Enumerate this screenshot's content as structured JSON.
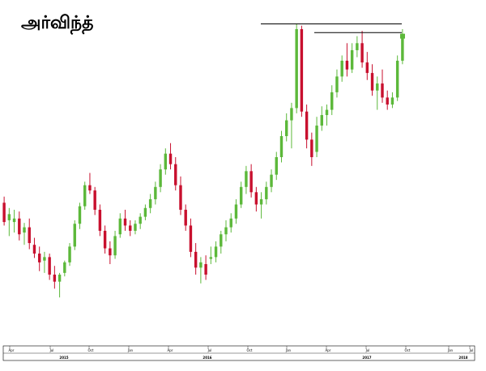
{
  "title": "அர்விந்த்",
  "colors": {
    "up": "#5cb83a",
    "down": "#c8102e",
    "axis": "#000000",
    "resistance_line": "#000000",
    "background": "#ffffff",
    "last_price_tag": "#5cb83a"
  },
  "chart_data": {
    "type": "candlestick",
    "title": "அர்விந்த்",
    "grid": false,
    "legend": "none",
    "x_month_labels": [
      "Apr",
      "Jul",
      "Oct",
      "Jan",
      "Apr",
      "Jul",
      "Oct",
      "Jan",
      "Apr",
      "Jul",
      "Oct",
      "Jan",
      "Jul"
    ],
    "x_year_labels": [
      "2015",
      "2016",
      "2017",
      "2018"
    ],
    "candles": [
      {
        "o": 258,
        "h": 265,
        "l": 232,
        "c": 236
      },
      {
        "o": 238,
        "h": 252,
        "l": 220,
        "c": 245
      },
      {
        "o": 236,
        "h": 250,
        "l": 224,
        "c": 240
      },
      {
        "o": 240,
        "h": 248,
        "l": 215,
        "c": 222
      },
      {
        "o": 224,
        "h": 235,
        "l": 210,
        "c": 230
      },
      {
        "o": 230,
        "h": 240,
        "l": 205,
        "c": 212
      },
      {
        "o": 210,
        "h": 218,
        "l": 195,
        "c": 200
      },
      {
        "o": 200,
        "h": 208,
        "l": 180,
        "c": 190
      },
      {
        "o": 192,
        "h": 202,
        "l": 178,
        "c": 196
      },
      {
        "o": 196,
        "h": 200,
        "l": 170,
        "c": 176
      },
      {
        "o": 176,
        "h": 186,
        "l": 160,
        "c": 168
      },
      {
        "o": 168,
        "h": 178,
        "l": 150,
        "c": 176
      },
      {
        "o": 178,
        "h": 192,
        "l": 174,
        "c": 190
      },
      {
        "o": 190,
        "h": 212,
        "l": 186,
        "c": 208
      },
      {
        "o": 208,
        "h": 238,
        "l": 204,
        "c": 234
      },
      {
        "o": 234,
        "h": 258,
        "l": 228,
        "c": 254
      },
      {
        "o": 254,
        "h": 282,
        "l": 250,
        "c": 278
      },
      {
        "o": 278,
        "h": 292,
        "l": 268,
        "c": 272
      },
      {
        "o": 272,
        "h": 276,
        "l": 244,
        "c": 250
      },
      {
        "o": 250,
        "h": 256,
        "l": 220,
        "c": 226
      },
      {
        "o": 226,
        "h": 232,
        "l": 200,
        "c": 206
      },
      {
        "o": 206,
        "h": 214,
        "l": 188,
        "c": 198
      },
      {
        "o": 198,
        "h": 226,
        "l": 194,
        "c": 220
      },
      {
        "o": 222,
        "h": 246,
        "l": 218,
        "c": 240
      },
      {
        "o": 240,
        "h": 250,
        "l": 226,
        "c": 232
      },
      {
        "o": 232,
        "h": 238,
        "l": 220,
        "c": 226
      },
      {
        "o": 226,
        "h": 238,
        "l": 222,
        "c": 234
      },
      {
        "o": 234,
        "h": 246,
        "l": 228,
        "c": 242
      },
      {
        "o": 242,
        "h": 256,
        "l": 238,
        "c": 252
      },
      {
        "o": 252,
        "h": 268,
        "l": 246,
        "c": 262
      },
      {
        "o": 262,
        "h": 282,
        "l": 256,
        "c": 276
      },
      {
        "o": 276,
        "h": 302,
        "l": 270,
        "c": 296
      },
      {
        "o": 296,
        "h": 320,
        "l": 290,
        "c": 314
      },
      {
        "o": 314,
        "h": 326,
        "l": 296,
        "c": 302
      },
      {
        "o": 302,
        "h": 310,
        "l": 272,
        "c": 278
      },
      {
        "o": 278,
        "h": 288,
        "l": 244,
        "c": 250
      },
      {
        "o": 250,
        "h": 256,
        "l": 226,
        "c": 232
      },
      {
        "o": 232,
        "h": 240,
        "l": 196,
        "c": 202
      },
      {
        "o": 202,
        "h": 212,
        "l": 176,
        "c": 184
      },
      {
        "o": 184,
        "h": 196,
        "l": 166,
        "c": 190
      },
      {
        "o": 188,
        "h": 198,
        "l": 170,
        "c": 176
      },
      {
        "o": 194,
        "h": 208,
        "l": 188,
        "c": 196
      },
      {
        "o": 196,
        "h": 214,
        "l": 190,
        "c": 208
      },
      {
        "o": 208,
        "h": 226,
        "l": 200,
        "c": 222
      },
      {
        "o": 222,
        "h": 238,
        "l": 214,
        "c": 230
      },
      {
        "o": 230,
        "h": 246,
        "l": 224,
        "c": 240
      },
      {
        "o": 240,
        "h": 262,
        "l": 234,
        "c": 256
      },
      {
        "o": 256,
        "h": 282,
        "l": 252,
        "c": 276
      },
      {
        "o": 276,
        "h": 300,
        "l": 268,
        "c": 294
      },
      {
        "o": 294,
        "h": 302,
        "l": 264,
        "c": 270
      },
      {
        "o": 270,
        "h": 276,
        "l": 248,
        "c": 256
      },
      {
        "o": 256,
        "h": 270,
        "l": 240,
        "c": 262
      },
      {
        "o": 262,
        "h": 282,
        "l": 256,
        "c": 276
      },
      {
        "o": 276,
        "h": 296,
        "l": 270,
        "c": 290
      },
      {
        "o": 290,
        "h": 316,
        "l": 284,
        "c": 310
      },
      {
        "o": 310,
        "h": 340,
        "l": 304,
        "c": 334
      },
      {
        "o": 334,
        "h": 360,
        "l": 328,
        "c": 352
      },
      {
        "o": 352,
        "h": 372,
        "l": 320,
        "c": 366
      },
      {
        "o": 366,
        "h": 462,
        "l": 360,
        "c": 456
      },
      {
        "o": 456,
        "h": 460,
        "l": 356,
        "c": 362
      },
      {
        "o": 362,
        "h": 370,
        "l": 320,
        "c": 330
      },
      {
        "o": 330,
        "h": 338,
        "l": 300,
        "c": 310
      },
      {
        "o": 316,
        "h": 356,
        "l": 310,
        "c": 346
      },
      {
        "o": 346,
        "h": 368,
        "l": 340,
        "c": 358
      },
      {
        "o": 358,
        "h": 370,
        "l": 346,
        "c": 364
      },
      {
        "o": 364,
        "h": 392,
        "l": 358,
        "c": 384
      },
      {
        "o": 384,
        "h": 410,
        "l": 378,
        "c": 402
      },
      {
        "o": 402,
        "h": 426,
        "l": 396,
        "c": 420
      },
      {
        "o": 420,
        "h": 440,
        "l": 402,
        "c": 410
      },
      {
        "o": 410,
        "h": 440,
        "l": 406,
        "c": 432
      },
      {
        "o": 432,
        "h": 448,
        "l": 424,
        "c": 440
      },
      {
        "o": 440,
        "h": 454,
        "l": 412,
        "c": 418
      },
      {
        "o": 418,
        "h": 430,
        "l": 398,
        "c": 406
      },
      {
        "o": 406,
        "h": 416,
        "l": 380,
        "c": 386
      },
      {
        "o": 386,
        "h": 402,
        "l": 364,
        "c": 394
      },
      {
        "o": 394,
        "h": 410,
        "l": 372,
        "c": 378
      },
      {
        "o": 378,
        "h": 386,
        "l": 364,
        "c": 370
      },
      {
        "o": 370,
        "h": 384,
        "l": 366,
        "c": 378
      },
      {
        "o": 378,
        "h": 426,
        "l": 374,
        "c": 420
      },
      {
        "o": 420,
        "h": 456,
        "l": 416,
        "c": 448
      }
    ],
    "annotations": [
      {
        "type": "resistance_line",
        "value": 462
      },
      {
        "type": "resistance_line",
        "value": 452
      }
    ],
    "ylim": [
      140,
      480
    ]
  }
}
